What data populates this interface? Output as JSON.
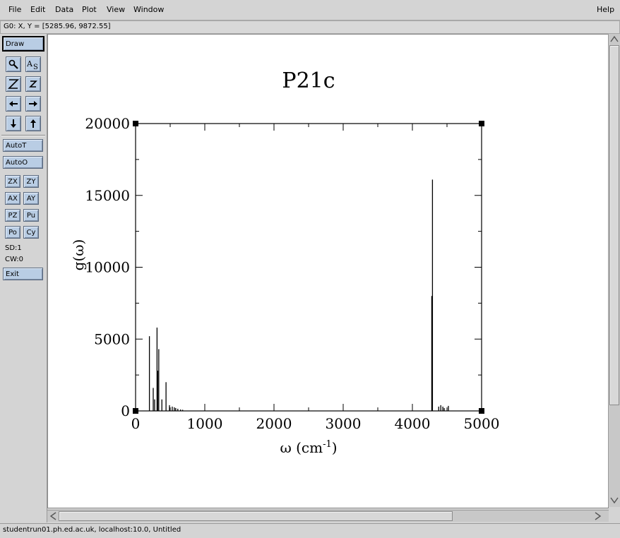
{
  "menubar": {
    "items": [
      "File",
      "Edit",
      "Data",
      "Plot",
      "View",
      "Window"
    ],
    "help": "Help"
  },
  "coord_readout": "G0: X, Y = [5285.96, 9872.55]",
  "toolbar": {
    "draw": "Draw",
    "icons": [
      "zoom-icon",
      "autoscale-sets-icon",
      "zoom-in-icon",
      "zoom-out-icon",
      "scroll-left-icon",
      "scroll-right-icon",
      "scroll-down-icon",
      "scroll-up-icon"
    ],
    "autot": "AutoT",
    "autoo": "AutoO",
    "small_buttons": [
      "ZX",
      "ZY",
      "AX",
      "AY",
      "PZ",
      "Pu",
      "Po",
      "Cy"
    ],
    "sd": "SD:1",
    "cw": "CW:0",
    "exit": "Exit"
  },
  "statusbar": "studentrun01.ph.ed.ac.uk, localhost:10.0, Untitled",
  "chart_data": {
    "type": "bar",
    "title": "P21c",
    "xlabel": "ω (cm",
    "xlabel_sup": "-1",
    "xlabel_close": ")",
    "ylabel": "g(ω)",
    "xlim": [
      0,
      5000
    ],
    "ylim": [
      0,
      20000
    ],
    "x_ticks": [
      "0",
      "1000",
      "2000",
      "3000",
      "4000",
      "5000"
    ],
    "y_ticks": [
      "0",
      "5000",
      "10000",
      "15000",
      "20000"
    ],
    "color": "#000000",
    "bars": [
      {
        "x": 200,
        "y": 5200
      },
      {
        "x": 255,
        "y": 1600
      },
      {
        "x": 275,
        "y": 800
      },
      {
        "x": 310,
        "y": 5800
      },
      {
        "x": 320,
        "y": 2800
      },
      {
        "x": 335,
        "y": 4300
      },
      {
        "x": 380,
        "y": 800
      },
      {
        "x": 440,
        "y": 2000
      },
      {
        "x": 490,
        "y": 400
      },
      {
        "x": 530,
        "y": 300
      },
      {
        "x": 560,
        "y": 250
      },
      {
        "x": 580,
        "y": 200
      },
      {
        "x": 610,
        "y": 150
      },
      {
        "x": 650,
        "y": 100
      },
      {
        "x": 680,
        "y": 80
      },
      {
        "x": 4280,
        "y": 8000
      },
      {
        "x": 4290,
        "y": 16100
      },
      {
        "x": 4380,
        "y": 300
      },
      {
        "x": 4410,
        "y": 400
      },
      {
        "x": 4440,
        "y": 300
      },
      {
        "x": 4460,
        "y": 200
      },
      {
        "x": 4520,
        "y": 350
      }
    ]
  }
}
